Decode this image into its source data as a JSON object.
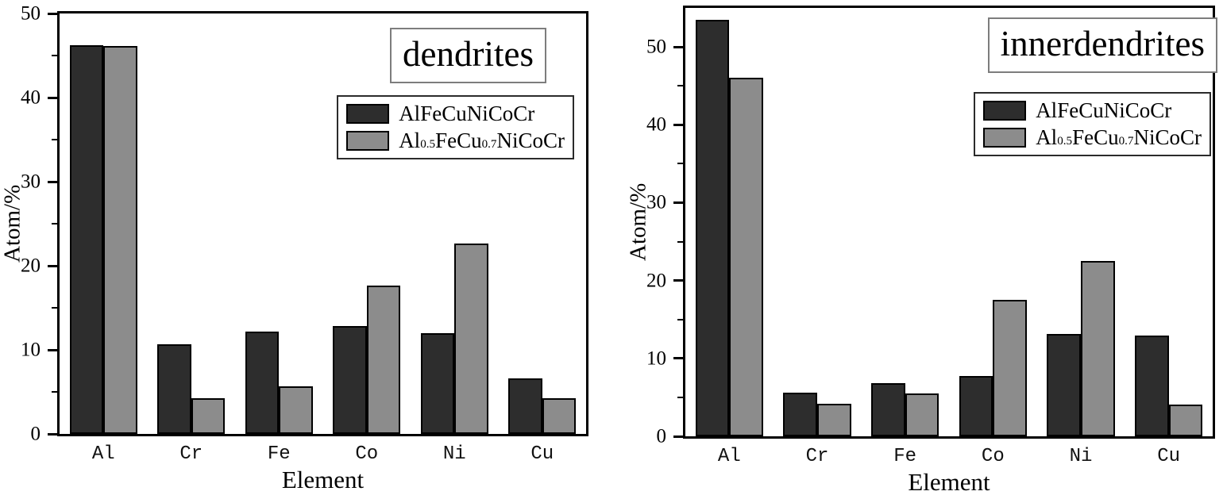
{
  "figure": {
    "background": "#ffffff",
    "frame_color": "#000000",
    "bar_edge_color": "#000000"
  },
  "chart_data": [
    {
      "type": "bar",
      "title": "dendrites",
      "xlabel": "Element",
      "ylabel": "Atom/%",
      "categories": [
        "Al",
        "Cr",
        "Fe",
        "Co",
        "Ni",
        "Cu"
      ],
      "series": [
        {
          "name": "AlFeCuNiCoCr",
          "color": "#2d2d2d",
          "name_parts": [
            {
              "text": "AlFeCuNiCoCr",
              "sub": false
            }
          ],
          "values": [
            46.2,
            10.7,
            12.2,
            12.8,
            12.0,
            6.6
          ]
        },
        {
          "name": "Al0.5FeCu0.7NiCoCr",
          "color": "#8c8c8c",
          "name_parts": [
            {
              "text": "Al",
              "sub": false
            },
            {
              "text": "0.5",
              "sub": true
            },
            {
              "text": "FeCu",
              "sub": false
            },
            {
              "text": "0.7",
              "sub": true
            },
            {
              "text": "NiCoCr",
              "sub": false
            }
          ],
          "values": [
            46.1,
            4.2,
            5.7,
            17.6,
            22.6,
            4.2
          ]
        }
      ],
      "ylim": [
        0,
        50
      ],
      "yticks_major": [
        0,
        10,
        20,
        30,
        40,
        50
      ],
      "yticks_minor": [
        5,
        15,
        25,
        35,
        45
      ],
      "grid": false,
      "legend_position": "upper-right"
    },
    {
      "type": "bar",
      "title": "innerdendrites",
      "xlabel": "Element",
      "ylabel": "Atom/%",
      "categories": [
        "Al",
        "Cr",
        "Fe",
        "Co",
        "Ni",
        "Cu"
      ],
      "series": [
        {
          "name": "AlFeCuNiCoCr",
          "color": "#2d2d2d",
          "name_parts": [
            {
              "text": "AlFeCuNiCoCr",
              "sub": false
            }
          ],
          "values": [
            53.5,
            5.6,
            6.8,
            7.7,
            13.1,
            12.9
          ]
        },
        {
          "name": "Al0.5FeCu0.7NiCoCr",
          "color": "#8c8c8c",
          "name_parts": [
            {
              "text": "Al",
              "sub": false
            },
            {
              "text": "0.5",
              "sub": true
            },
            {
              "text": "FeCu",
              "sub": false
            },
            {
              "text": "0.7",
              "sub": true
            },
            {
              "text": "NiCoCr",
              "sub": false
            }
          ],
          "values": [
            46.0,
            4.2,
            5.5,
            17.5,
            22.5,
            4.1
          ]
        }
      ],
      "ylim": [
        0,
        55
      ],
      "yticks_major": [
        0,
        10,
        20,
        30,
        40,
        50
      ],
      "yticks_minor": [
        5,
        15,
        25,
        35,
        45
      ],
      "grid": false,
      "legend_position": "upper-right"
    }
  ]
}
